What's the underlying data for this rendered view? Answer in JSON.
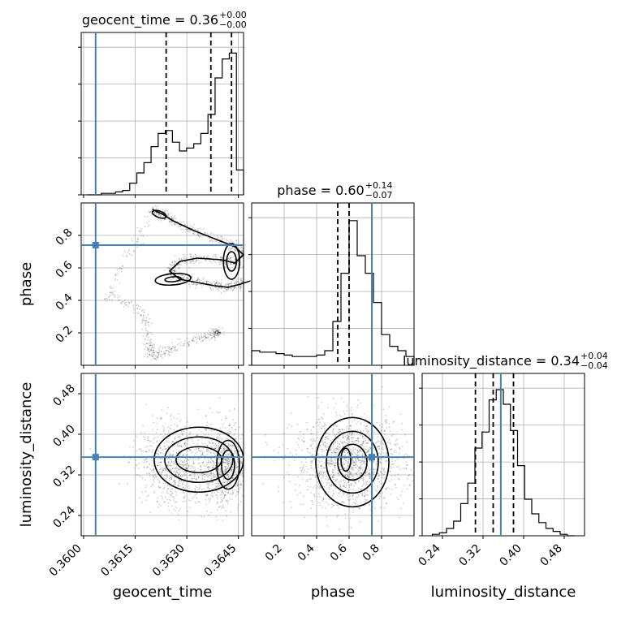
{
  "chart_data": {
    "type": "corner",
    "colors": {
      "truth": "#4682b4",
      "hist": "#000000",
      "grid": "#b0b0b0",
      "scatter": "#000000"
    },
    "params": [
      "geocent_time",
      "phase",
      "luminosity_distance"
    ],
    "truths": {
      "geocent_time": 0.36035,
      "phase": 0.74,
      "luminosity_distance": 0.355
    },
    "quantiles": {
      "geocent_time": [
        0.3624,
        0.3637,
        0.3643
      ],
      "phase": [
        0.53,
        0.6,
        0.74
      ],
      "luminosity_distance": [
        0.305,
        0.34,
        0.38
      ]
    },
    "titles": {
      "geocent_time": {
        "label": "geocent_time = 0.36",
        "plus": "+0.00",
        "minus": "−0.00"
      },
      "phase": {
        "label": "phase = 0.60",
        "plus": "+0.14",
        "minus": "−0.07"
      },
      "luminosity_distance": {
        "label": "luminosity_distance = 0.34",
        "plus": "+0.04",
        "minus": "−0.04"
      }
    },
    "axes": {
      "geocent_time": {
        "range": [
          0.35993,
          0.36465
        ],
        "ticks": [
          0.36,
          0.3615,
          0.363,
          0.3645
        ],
        "tick_labels": [
          "0.3600",
          "0.3615",
          "0.3630",
          "0.3645"
        ],
        "label": "geocent_time"
      },
      "phase": {
        "range": [
          0.0,
          1.0
        ],
        "ticks": [
          0.2,
          0.4,
          0.6,
          0.8
        ],
        "tick_labels": [
          "0.2",
          "0.4",
          "0.6",
          "0.8"
        ],
        "label": "phase"
      },
      "luminosity_distance": {
        "range": [
          0.2,
          0.52
        ],
        "ticks": [
          0.24,
          0.32,
          0.4,
          0.48
        ],
        "tick_labels": [
          "0.24",
          "0.32",
          "0.40",
          "0.48"
        ],
        "label": "luminosity_distance"
      }
    },
    "histograms": {
      "geocent_time": [
        0,
        0,
        0.01,
        0.01,
        0.02,
        0.03,
        0.08,
        0.15,
        0.22,
        0.33,
        0.42,
        0.44,
        0.36,
        0.3,
        0.32,
        0.35,
        0.42,
        0.55,
        0.8,
        0.93,
        0.97,
        0.17
      ],
      "phase": [
        0.1,
        0.09,
        0.09,
        0.08,
        0.07,
        0.06,
        0.06,
        0.06,
        0.07,
        0.1,
        0.3,
        0.63,
        0.99,
        0.75,
        0.63,
        0.43,
        0.21,
        0.13,
        0.1,
        0.06
      ],
      "luminosity_distance": [
        0.01,
        0.02,
        0.05,
        0.1,
        0.22,
        0.36,
        0.6,
        0.71,
        0.93,
        1.0,
        0.9,
        0.72,
        0.48,
        0.25,
        0.15,
        0.09,
        0.05,
        0.03,
        0.01,
        0.0
      ]
    },
    "phase_vs_time_track": [
      [
        0.36485,
        0.52
      ],
      [
        0.36456,
        0.5
      ],
      [
        0.3642,
        0.48
      ],
      [
        0.3638,
        0.49
      ],
      [
        0.3633,
        0.51
      ],
      [
        0.3628,
        0.53
      ],
      [
        0.3625,
        0.58
      ],
      [
        0.3628,
        0.64
      ],
      [
        0.3633,
        0.66
      ],
      [
        0.364,
        0.65
      ],
      [
        0.3644,
        0.63
      ],
      [
        0.36465,
        0.68
      ],
      [
        0.3644,
        0.73
      ],
      [
        0.3638,
        0.78
      ],
      [
        0.3632,
        0.83
      ],
      [
        0.3626,
        0.89
      ],
      [
        0.3623,
        0.93
      ],
      [
        0.362,
        0.96
      ]
    ],
    "phase_vs_time_lower_track": [
      [
        0.3607,
        0.43
      ],
      [
        0.3617,
        0.34
      ],
      [
        0.3619,
        0.14
      ],
      [
        0.362,
        0.05
      ],
      [
        0.3625,
        0.1
      ],
      [
        0.3634,
        0.17
      ],
      [
        0.3639,
        0.2
      ]
    ],
    "contour_levels": 3
  }
}
